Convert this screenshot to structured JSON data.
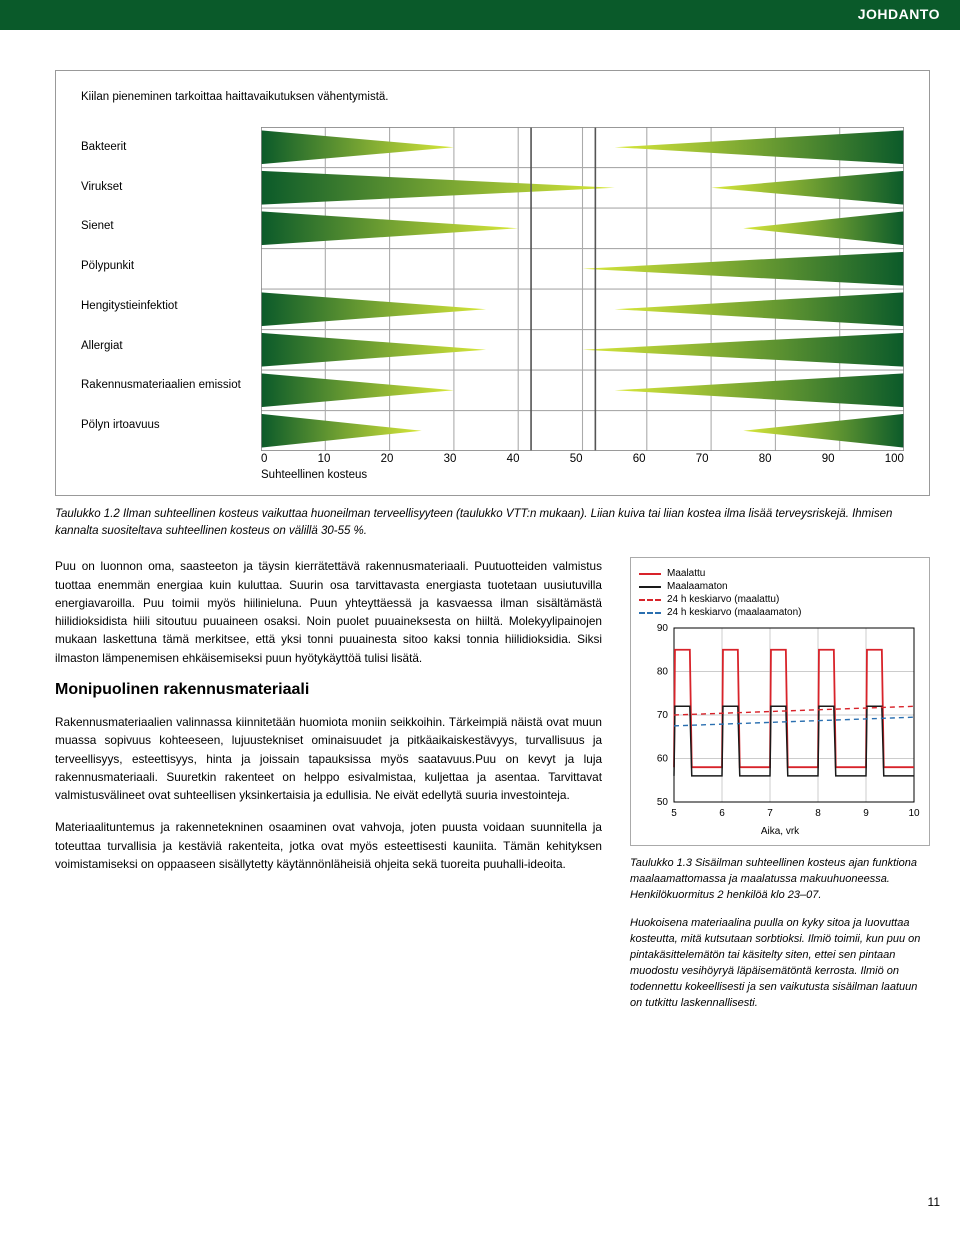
{
  "header": {
    "title": "JOHDANTO"
  },
  "box1": {
    "caption": "Kiilan pieneminen tarkoittaa haittavaikutuksen vähentymistä.",
    "rows": [
      {
        "label": "Bakteerit",
        "left_start": 0,
        "left_len": 30,
        "right_start": 55,
        "right_len": 45
      },
      {
        "label": "Virukset",
        "left_start": 0,
        "left_len": 55,
        "right_start": 70,
        "right_len": 30
      },
      {
        "label": "Sienet",
        "left_start": 0,
        "left_len": 40,
        "right_start": 75,
        "right_len": 25
      },
      {
        "label": "Pölypunkit",
        "left_start": 0,
        "left_len": 0,
        "right_start": 50,
        "right_len": 50
      },
      {
        "label": "Hengitystieinfektiot",
        "left_start": 0,
        "left_len": 35,
        "right_start": 55,
        "right_len": 45
      },
      {
        "label": "Allergiat",
        "left_start": 0,
        "left_len": 35,
        "right_start": 50,
        "right_len": 50
      },
      {
        "label": "Rakennusmateriaalien emissiot",
        "left_start": 0,
        "left_len": 30,
        "right_start": 55,
        "right_len": 45
      },
      {
        "label": "Pölyn irtoavuus",
        "left_start": 0,
        "left_len": 25,
        "right_start": 75,
        "right_len": 25
      }
    ],
    "optimal_window": {
      "start": 42,
      "end": 52
    },
    "xticks": [
      "0",
      "10",
      "20",
      "30",
      "40",
      "50",
      "60",
      "70",
      "80",
      "90",
      "100"
    ],
    "xlabel": "Suhteellinen kosteus",
    "colors": {
      "wedge_dark": "#0b5a2a",
      "wedge_light": "#d9e83a",
      "gridline": "#aaaaaa",
      "border": "#888888",
      "highlight_border": "#555555"
    }
  },
  "caption12": "Taulukko 1.2 Ilman suhteellinen kosteus vaikuttaa huoneilman terveellisyyteen (taulukko VTT:n mukaan). Liian kuiva tai liian kostea ilma lisää terveysriskejä. Ihmisen kannalta suositeltava suhteellinen kosteus on välillä 30-55 %.",
  "para1": "Puu on luonnon oma, saasteeton ja täysin kierrätettävä rakennusmateriaali. Puutuotteiden valmistus tuottaa enemmän energiaa kuin kuluttaa. Suurin osa tarvittavasta energiasta tuotetaan uusiutuvilla energiavaroilla. Puu toimii myös hiilinieluna. Puun yhteyttäessä ja kasvaessa ilman sisältämästä hiilidioksidista hiili sitoutuu puuaineen osaksi. Noin puolet puuaineksesta on hiiltä. Molekyylipainojen mukaan laskettuna tämä merkitsee, että yksi tonni puuainesta sitoo kaksi tonnia hiilidioksidia. Siksi ilmaston lämpenemisen ehkäisemiseksi puun hyötykäyttöä tulisi lisätä.",
  "h2": "Monipuolinen rakennusmateriaali",
  "para2": "Rakennusmateriaalien valinnassa kiinnitetään huomiota moniin seikkoihin. Tärkeimpiä näistä ovat muun muassa sopivuus kohteeseen, lujuustekniset ominaisuudet ja pitkäaikaiskestävyys, turvallisuus ja terveellisyys, esteettisyys, hinta ja joissain tapauksissa myös saatavuus.Puu on kevyt ja luja rakennusmateriaali. Suuretkin rakenteet on helppo esivalmistaa, kuljettaa ja asentaa. Tarvittavat valmistusvälineet ovat suhteellisen yksinkertaisia ja edullisia. Ne eivät edellytä suuria investointeja.",
  "para3": "Materiaalituntemus ja rakennetekninen osaaminen ovat vahvoja, joten puusta voidaan suunnitella ja toteuttaa turvallisia ja kestäviä rakenteita, jotka ovat myös esteettisesti kauniita. Tämän kehityksen voimistamiseksi on oppaaseen sisällytetty käytännönläheisiä ohjeita sekä tuoreita puuhalli-ideoita.",
  "chart2": {
    "legend": [
      {
        "label": "Maalattu",
        "color": "#d8232a",
        "dash": false
      },
      {
        "label": "Maalaamaton",
        "color": "#1a1a1a",
        "dash": false
      },
      {
        "label": "24 h keskiarvo (maalattu)",
        "color": "#d8232a",
        "dash": true
      },
      {
        "label": "24 h keskiarvo (maalaamaton)",
        "color": "#2a6fb0",
        "dash": true
      }
    ],
    "ylim": [
      50,
      90
    ],
    "yticks": [
      50,
      60,
      70,
      80,
      90
    ],
    "xlim": [
      5,
      10
    ],
    "xticks": [
      5,
      6,
      7,
      8,
      9,
      10
    ],
    "xlabel": "Aika, vrk",
    "avg_maalattu": 71,
    "avg_maalaamaton": 68,
    "maalattu_low": 58,
    "maalattu_high": 85,
    "maalaamaton_low": 56,
    "maalaamaton_high": 72,
    "colors": {
      "grid": "#cccccc",
      "axis": "#000000",
      "bg": "#ffffff"
    }
  },
  "caption13": "Taulukko 1.3 Sisäilman suhteellinen kosteus ajan funktiona maalaamattomassa ja maalatussa makuuhuoneessa. Henkilökuormitus 2 henkilöä klo 23–07.",
  "sorptio": "Huokoisena materiaalina puulla on kyky sitoa ja luovuttaa kosteutta, mitä kutsutaan sorbtioksi. Ilmiö toimii, kun puu on pintakäsittelemätön tai käsitelty siten, ettei sen pintaan muodostu vesihöyryä läpäisemätöntä kerrosta. Ilmiö on todennettu kokeellisesti ja sen vaikutusta sisäilman laatuun on tutkittu laskennallisesti.",
  "pagenum": "11"
}
